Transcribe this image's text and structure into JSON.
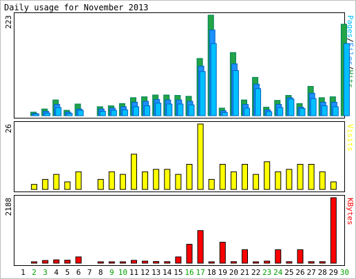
{
  "title": "Daily usage for November 2013",
  "colors": {
    "hits": "#00805c",
    "hits_fill": "#23a446",
    "files": "#0060c0",
    "files_fill": "#1e90ff",
    "pages": "#00c0ff",
    "visits": "#ffff00",
    "kbytes": "#ff0000",
    "weekday_label": "#000000",
    "weekend_label": "#00a000",
    "background": "#ffffff",
    "panel_border": "#000000"
  },
  "chart_data": [
    {
      "type": "bar",
      "title": "Daily usage for November 2013",
      "ymax_label": "223",
      "ylim": [
        0,
        223
      ],
      "legend": [
        {
          "name": "Pages",
          "color": "#00c0ff"
        },
        {
          "name": "Files",
          "color": "#1e90ff"
        },
        {
          "name": "Hits",
          "color": "#23a446"
        }
      ],
      "legend_separator": "/",
      "categories": [
        "1",
        "2",
        "3",
        "4",
        "5",
        "6",
        "7",
        "8",
        "9",
        "10",
        "11",
        "12",
        "13",
        "14",
        "15",
        "16",
        "17",
        "18",
        "19",
        "20",
        "21",
        "22",
        "23",
        "24",
        "25",
        "26",
        "27",
        "28",
        "29",
        "30"
      ],
      "series": [
        {
          "name": "Hits",
          "values": [
            0,
            8,
            15,
            35,
            12,
            26,
            0,
            20,
            22,
            27,
            40,
            42,
            46,
            46,
            45,
            43,
            127,
            223,
            17,
            140,
            35,
            85,
            19,
            34,
            45,
            27,
            65,
            40,
            42,
            203
          ]
        },
        {
          "name": "Files",
          "values": [
            0,
            5,
            10,
            25,
            8,
            15,
            0,
            15,
            17,
            20,
            30,
            32,
            36,
            35,
            35,
            32,
            110,
            190,
            11,
            115,
            25,
            70,
            13,
            25,
            40,
            19,
            50,
            30,
            30,
            0
          ]
        },
        {
          "name": "Pages",
          "values": [
            0,
            4,
            6,
            18,
            5,
            12,
            0,
            10,
            12,
            13,
            20,
            22,
            28,
            26,
            26,
            24,
            98,
            160,
            7,
            100,
            17,
            60,
            9,
            18,
            37,
            16,
            38,
            22,
            20,
            160
          ]
        }
      ]
    },
    {
      "type": "bar",
      "ymax_label": "26",
      "ylim": [
        0,
        26
      ],
      "legend": [
        {
          "name": "Visits",
          "color": "#ffff00"
        }
      ],
      "categories": [
        "1",
        "2",
        "3",
        "4",
        "5",
        "6",
        "7",
        "8",
        "9",
        "10",
        "11",
        "12",
        "13",
        "14",
        "15",
        "16",
        "17",
        "18",
        "19",
        "20",
        "21",
        "22",
        "23",
        "24",
        "25",
        "26",
        "27",
        "28",
        "29",
        "30"
      ],
      "series": [
        {
          "name": "Visits",
          "values": [
            0,
            2,
            4,
            6,
            3,
            7,
            0,
            4,
            7,
            6,
            14,
            7,
            8,
            8,
            6,
            10,
            26,
            4,
            10,
            7,
            10,
            6,
            11,
            7,
            8,
            10,
            10,
            7,
            3,
            0
          ]
        }
      ]
    },
    {
      "type": "bar",
      "ymax_label": "2188",
      "ylim": [
        0,
        2188
      ],
      "legend": [
        {
          "name": "KBytes",
          "color": "#ff0000"
        }
      ],
      "categories": [
        "1",
        "2",
        "3",
        "4",
        "5",
        "6",
        "7",
        "8",
        "9",
        "10",
        "11",
        "12",
        "13",
        "14",
        "15",
        "16",
        "17",
        "18",
        "19",
        "20",
        "21",
        "22",
        "23",
        "24",
        "25",
        "26",
        "27",
        "28",
        "29",
        "30"
      ],
      "series": [
        {
          "name": "KBytes",
          "values": [
            0,
            30,
            90,
            110,
            100,
            210,
            0,
            20,
            25,
            25,
            95,
            70,
            55,
            50,
            210,
            630,
            1090,
            40,
            700,
            50,
            450,
            40,
            70,
            450,
            50,
            450,
            50,
            50,
            2188,
            0
          ]
        }
      ]
    }
  ],
  "x_labels": [
    {
      "label": "1",
      "weekend": false
    },
    {
      "label": "2",
      "weekend": true
    },
    {
      "label": "3",
      "weekend": true
    },
    {
      "label": "4",
      "weekend": false
    },
    {
      "label": "5",
      "weekend": false
    },
    {
      "label": "6",
      "weekend": false
    },
    {
      "label": "7",
      "weekend": false
    },
    {
      "label": "8",
      "weekend": false
    },
    {
      "label": "9",
      "weekend": true
    },
    {
      "label": "10",
      "weekend": true
    },
    {
      "label": "11",
      "weekend": false
    },
    {
      "label": "12",
      "weekend": false
    },
    {
      "label": "13",
      "weekend": false
    },
    {
      "label": "14",
      "weekend": false
    },
    {
      "label": "15",
      "weekend": false
    },
    {
      "label": "16",
      "weekend": true
    },
    {
      "label": "17",
      "weekend": true
    },
    {
      "label": "18",
      "weekend": false
    },
    {
      "label": "19",
      "weekend": false
    },
    {
      "label": "20",
      "weekend": false
    },
    {
      "label": "21",
      "weekend": false
    },
    {
      "label": "22",
      "weekend": false
    },
    {
      "label": "23",
      "weekend": true
    },
    {
      "label": "24",
      "weekend": true
    },
    {
      "label": "25",
      "weekend": false
    },
    {
      "label": "26",
      "weekend": false
    },
    {
      "label": "27",
      "weekend": false
    },
    {
      "label": "28",
      "weekend": false
    },
    {
      "label": "29",
      "weekend": false
    },
    {
      "label": "30",
      "weekend": true
    }
  ]
}
